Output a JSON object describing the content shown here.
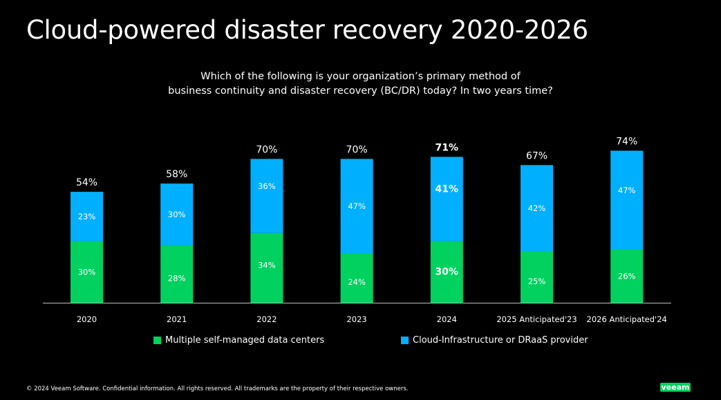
{
  "header": {
    "title": "Cloud-powered disaster recovery 2020-2026",
    "subtitle_line1": "Which of the following is your organization’s primary method of",
    "subtitle_line2": "business continuity and disaster recovery (BC/DR) today?  In two years time?"
  },
  "colors": {
    "background": "#000000",
    "self_managed": "#00d15f",
    "cloud": "#00b0ff",
    "axis": "#bfbfbf"
  },
  "chart_data": {
    "type": "bar",
    "stacked": true,
    "categories": [
      "2020",
      "2021",
      "2022",
      "2023",
      "2024",
      "2025 Anticipated'23",
      "2026 Anticipated'24"
    ],
    "series": [
      {
        "name": "Multiple self-managed data centers",
        "values": [
          30,
          28,
          34,
          24,
          30,
          25,
          26
        ],
        "labels": [
          "30%",
          "28%",
          "34%",
          "24%",
          "30%",
          "25%",
          "26%"
        ]
      },
      {
        "name": "Cloud-Infrastructure or DRaaS provider",
        "values": [
          23,
          30,
          36,
          47,
          41,
          42,
          47
        ],
        "labels": [
          "23%",
          "30%",
          "36%",
          "47%",
          "41%",
          "42%",
          "47%"
        ]
      }
    ],
    "totals": [
      54,
      58,
      70,
      70,
      71,
      67,
      74
    ],
    "total_labels": [
      "54%",
      "58%",
      "70%",
      "70%",
      "71%",
      "67%",
      "74%"
    ],
    "highlighted_category": "2024",
    "title": "Cloud-powered disaster recovery 2020-2026",
    "xlabel": "",
    "ylabel": "",
    "ylim": [
      0,
      80
    ],
    "grid": false,
    "legend_position": "bottom"
  },
  "legend": {
    "items": [
      {
        "label": "Multiple self-managed data centers",
        "color": "#00d15f"
      },
      {
        "label": "Cloud-Infrastructure or DRaaS provider",
        "color": "#00b0ff"
      }
    ]
  },
  "footer": {
    "copyright": "© 2024 Veeam Software. Confidential information. All rights reserved. All trademarks are the property of their respective owners.",
    "logo": "veeam"
  }
}
